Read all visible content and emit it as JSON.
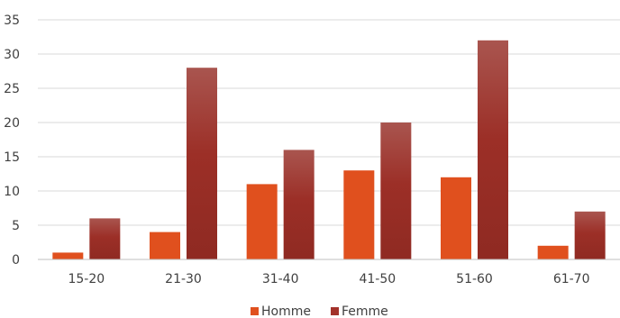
{
  "chart_data": {
    "type": "bar",
    "categories": [
      "15-20",
      "21-30",
      "31-40",
      "41-50",
      "51-60",
      "61-70"
    ],
    "series": [
      {
        "name": "Homme",
        "values": [
          1,
          4,
          11,
          13,
          12,
          2
        ],
        "color": "#e0501e"
      },
      {
        "name": "Femme",
        "values": [
          6,
          28,
          16,
          20,
          32,
          7
        ],
        "color": "#a3322a"
      }
    ],
    "title": "",
    "xlabel": "",
    "ylabel": "",
    "ylim": [
      0,
      35
    ],
    "yticks": [
      0,
      5,
      10,
      15,
      20,
      25,
      30,
      35
    ],
    "grid": true,
    "legend_position": "bottom"
  }
}
